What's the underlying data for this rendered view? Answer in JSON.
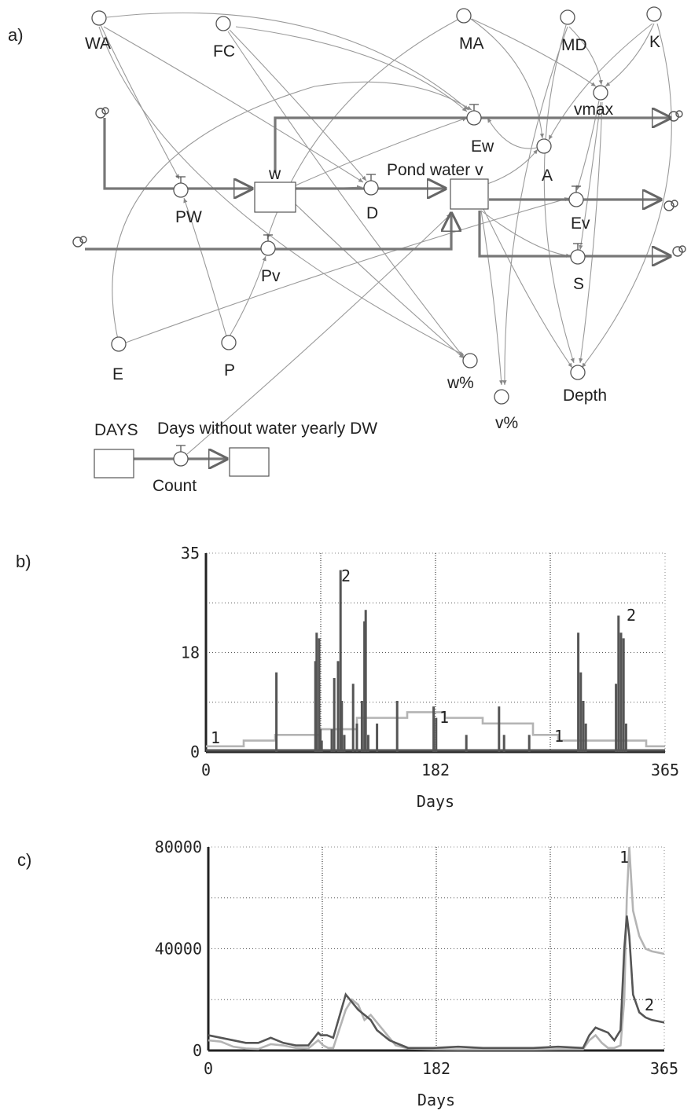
{
  "panels": {
    "a": "a)",
    "b": "b)",
    "c": "c)"
  },
  "diagram": {
    "variables": {
      "WA": "WA",
      "FC": "FC",
      "MA": "MA",
      "MD": "MD",
      "K": "K",
      "vmax": "vmax",
      "A": "A",
      "E": "E",
      "P": "P",
      "w_pct": "w%",
      "v_pct": "v%",
      "Depth": "Depth"
    },
    "flows": {
      "PW": "PW",
      "Pv": "Pv",
      "D": "D",
      "Ew": "Ew",
      "Ev": "Ev",
      "S": "S",
      "Count": "Count"
    },
    "stocks": {
      "w": "w",
      "pond": "Pond water v"
    },
    "counter": {
      "days": "DAYS",
      "title": "Days without water yearly DW"
    }
  },
  "colors": {
    "link": "#9a9a9a",
    "pipe": "#777777",
    "series_light": "#b4b4b4",
    "series_dark": "#555555"
  },
  "chart_data": [
    {
      "type": "line",
      "xlabel": "Days",
      "ylabel": "",
      "xlim": [
        0,
        365
      ],
      "ylim": [
        0,
        35
      ],
      "x_ticks": [
        "0",
        "182",
        "365"
      ],
      "y_ticks": [
        "0",
        "18",
        "35"
      ],
      "grid": true,
      "series": [
        {
          "name": "1",
          "style": "step",
          "x": [
            0,
            30,
            55,
            90,
            120,
            160,
            190,
            220,
            260,
            280,
            315,
            350,
            365
          ],
          "values": [
            1,
            2,
            3,
            4,
            6,
            7,
            6,
            5,
            3,
            2,
            2,
            1,
            1
          ]
        },
        {
          "name": "2",
          "style": "spikes",
          "x": [
            56,
            87,
            88,
            90,
            91,
            92,
            100,
            102,
            105,
            107,
            108,
            110,
            117,
            120,
            124,
            126,
            127,
            129,
            136,
            152,
            181,
            183,
            207,
            233,
            237,
            257,
            296,
            298,
            300,
            302,
            326,
            328,
            330,
            332,
            334
          ],
          "values": [
            14,
            16,
            21,
            20,
            4,
            2,
            4,
            13,
            16,
            32,
            9,
            3,
            12,
            5,
            9,
            23,
            25,
            3,
            5,
            9,
            8,
            6,
            3,
            8,
            3,
            3,
            21,
            14,
            9,
            5,
            12,
            24,
            21,
            20,
            5
          ]
        }
      ]
    },
    {
      "type": "line",
      "xlabel": "Days",
      "ylabel": "",
      "xlim": [
        0,
        365
      ],
      "ylim": [
        0,
        80000
      ],
      "x_ticks": [
        "0",
        "182",
        "365"
      ],
      "y_ticks": [
        "0",
        "40000",
        "80000"
      ],
      "grid": true,
      "series": [
        {
          "name": "1",
          "x": [
            0,
            10,
            20,
            30,
            40,
            50,
            60,
            70,
            80,
            88,
            92,
            96,
            100,
            110,
            115,
            120,
            125,
            130,
            140,
            150,
            160,
            180,
            200,
            220,
            240,
            260,
            280,
            300,
            305,
            310,
            315,
            320,
            325,
            330,
            333,
            335,
            337,
            340,
            345,
            350,
            355,
            365
          ],
          "values": [
            4000,
            3500,
            1500,
            800,
            600,
            2500,
            2000,
            1000,
            800,
            4000,
            2000,
            1000,
            1000,
            16000,
            20000,
            18000,
            12000,
            14000,
            8000,
            2000,
            800,
            500,
            400,
            400,
            400,
            400,
            500,
            500,
            4000,
            6000,
            3000,
            1000,
            1000,
            2000,
            20000,
            60000,
            80000,
            55000,
            45000,
            40000,
            39000,
            38000
          ]
        },
        {
          "name": "2",
          "x": [
            0,
            10,
            20,
            30,
            40,
            50,
            60,
            70,
            80,
            88,
            90,
            95,
            100,
            110,
            115,
            120,
            125,
            130,
            135,
            145,
            160,
            180,
            200,
            220,
            240,
            260,
            280,
            300,
            305,
            310,
            320,
            325,
            330,
            333,
            335,
            337,
            340,
            345,
            350,
            355,
            365
          ],
          "values": [
            6000,
            5000,
            4000,
            3000,
            3000,
            5000,
            3000,
            2000,
            2000,
            7000,
            6000,
            6000,
            5000,
            22000,
            19000,
            16000,
            14000,
            12000,
            8000,
            4000,
            1000,
            1000,
            1500,
            1000,
            1000,
            1000,
            1500,
            1000,
            6000,
            9000,
            7000,
            4000,
            8000,
            40000,
            53000,
            45000,
            22000,
            15000,
            13000,
            12000,
            11000
          ]
        }
      ]
    }
  ]
}
